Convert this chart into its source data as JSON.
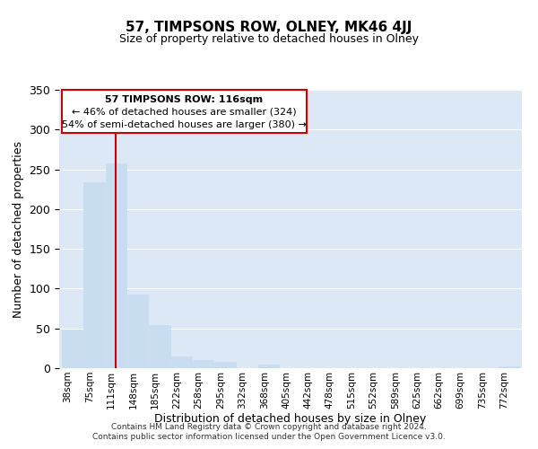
{
  "title": "57, TIMPSONS ROW, OLNEY, MK46 4JJ",
  "subtitle": "Size of property relative to detached houses in Olney",
  "xlabel": "Distribution of detached houses by size in Olney",
  "ylabel": "Number of detached properties",
  "bar_labels": [
    "38sqm",
    "75sqm",
    "111sqm",
    "148sqm",
    "185sqm",
    "222sqm",
    "258sqm",
    "295sqm",
    "332sqm",
    "368sqm",
    "405sqm",
    "442sqm",
    "478sqm",
    "515sqm",
    "552sqm",
    "589sqm",
    "625sqm",
    "662sqm",
    "699sqm",
    "735sqm",
    "772sqm"
  ],
  "bar_values": [
    49,
    234,
    257,
    93,
    54,
    15,
    10,
    8,
    0,
    4,
    0,
    0,
    0,
    0,
    0,
    0,
    0,
    0,
    0,
    0,
    2
  ],
  "bar_color": "#c8ddf0",
  "vline_x": 2,
  "vline_color": "#cc0000",
  "ylim": [
    0,
    350
  ],
  "yticks": [
    0,
    50,
    100,
    150,
    200,
    250,
    300,
    350
  ],
  "annotation_title": "57 TIMPSONS ROW: 116sqm",
  "annotation_line1": "← 46% of detached houses are smaller (324)",
  "annotation_line2": "54% of semi-detached houses are larger (380) →",
  "annotation_box_color": "#ffffff",
  "annotation_box_edge": "#cc0000",
  "footer1": "Contains HM Land Registry data © Crown copyright and database right 2024.",
  "footer2": "Contains public sector information licensed under the Open Government Licence v3.0.",
  "background_color": "#ffffff",
  "plot_bg_color": "#dce8f5"
}
